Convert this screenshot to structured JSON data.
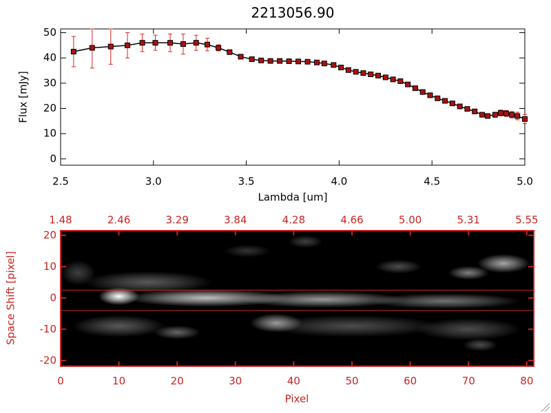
{
  "chart_data": [
    {
      "type": "errorbar-line",
      "title": "2213056.90",
      "xlabel": "Lambda [um]",
      "ylabel": "Flux [mJy]",
      "xlim": [
        2.5,
        5.0
      ],
      "xticks": [
        2.5,
        {
          "value": 3,
          "label": "3.0"
        },
        3.5,
        {
          "value": 4,
          "label": "4.0"
        },
        4.5,
        {
          "value": 5,
          "label": "5.0"
        }
      ],
      "ylim": [
        -2.5,
        51.5
      ],
      "yticks": [
        0,
        10,
        20,
        30,
        40,
        50
      ],
      "line_color": "#000000",
      "marker_color": "#aa1111",
      "error_color": "#dd2222",
      "x": [
        2.57,
        2.67,
        2.77,
        2.86,
        2.94,
        3.01,
        3.09,
        3.16,
        3.23,
        3.29,
        3.35,
        3.41,
        3.47,
        3.53,
        3.58,
        3.63,
        3.68,
        3.73,
        3.78,
        3.83,
        3.88,
        3.92,
        3.97,
        4.01,
        4.05,
        4.09,
        4.13,
        4.17,
        4.21,
        4.25,
        4.29,
        4.33,
        4.37,
        4.41,
        4.45,
        4.49,
        4.53,
        4.57,
        4.61,
        4.65,
        4.69,
        4.73,
        4.77,
        4.8,
        4.84,
        4.87,
        4.9,
        4.93,
        4.96,
        5.0
      ],
      "values": [
        42.5,
        44,
        44.5,
        45,
        46,
        46,
        46,
        45.5,
        46,
        45.3,
        44,
        42.3,
        40.5,
        39.5,
        39,
        38.8,
        38.8,
        38.7,
        38.6,
        38.5,
        38.2,
        37.8,
        37.2,
        36.2,
        35.2,
        34.5,
        34,
        33.5,
        33,
        32.3,
        31.5,
        30.8,
        29.5,
        28,
        26.5,
        25.2,
        24,
        23,
        22,
        20.8,
        19.8,
        18.8,
        17.5,
        17,
        17.5,
        18.2,
        18,
        17.5,
        17,
        15.8
      ],
      "errors": [
        6,
        8,
        7,
        5,
        3.5,
        3,
        3.5,
        4,
        3,
        2.5,
        1.2,
        0.8,
        0.6,
        0.5,
        0.5,
        0.5,
        0.5,
        0.5,
        0.5,
        0.5,
        0.5,
        0.5,
        0.5,
        0.5,
        0.5,
        0.5,
        0.5,
        0.5,
        0.5,
        0.5,
        0.5,
        0.5,
        0.5,
        0.5,
        0.5,
        0.5,
        0.5,
        0.5,
        0.5,
        0.6,
        0.6,
        0.7,
        0.8,
        0.8,
        1,
        1.2,
        1.2,
        1.3,
        1.5,
        1.8
      ]
    },
    {
      "type": "image",
      "xlabel": "Pixel",
      "ylabel": "Space Shift [pixel]",
      "axis_color": "#cc2222",
      "aperture_color": "#cc2222",
      "xlim": [
        0,
        81.2
      ],
      "xticks": [
        0,
        10,
        20,
        30,
        40,
        50,
        60,
        70,
        80
      ],
      "x2ticks": [
        {
          "value": 0,
          "label": "1.48"
        },
        {
          "value": 10,
          "label": "2.46"
        },
        {
          "value": 20,
          "label": "3.29"
        },
        {
          "value": 30,
          "label": "3.84"
        },
        {
          "value": 40,
          "label": "4.28"
        },
        {
          "value": 50,
          "label": "4.66"
        },
        {
          "value": 60,
          "label": "5.00"
        },
        {
          "value": 70,
          "label": "5.31"
        },
        {
          "value": 80,
          "label": "5.55"
        }
      ],
      "ylim": [
        -21.8,
        21.5
      ],
      "yticks": [
        -20,
        -10,
        0,
        10,
        20
      ],
      "aperture": [
        -4,
        2.5
      ],
      "emission": [
        {
          "x": 25,
          "y": 0,
          "sx": 14,
          "sy": 2.8,
          "peak": 0.75
        },
        {
          "x": 45,
          "y": -0.5,
          "sx": 14,
          "sy": 2.6,
          "peak": 0.6
        },
        {
          "x": 66,
          "y": -1,
          "sx": 13,
          "sy": 2.5,
          "peak": 0.45
        },
        {
          "x": 10,
          "y": 0.5,
          "sx": 3.5,
          "sy": 2.8,
          "peak": 1
        },
        {
          "x": 15,
          "y": 5,
          "sx": 11,
          "sy": 3.5,
          "peak": 0.35
        },
        {
          "x": 10,
          "y": -9,
          "sx": 8,
          "sy": 3.5,
          "peak": 0.35
        },
        {
          "x": 20,
          "y": -11,
          "sx": 4,
          "sy": 2.2,
          "peak": 0.4
        },
        {
          "x": 37,
          "y": -8,
          "sx": 4.5,
          "sy": 3,
          "peak": 0.6
        },
        {
          "x": 50,
          "y": -9,
          "sx": 15,
          "sy": 3.5,
          "peak": 0.3
        },
        {
          "x": 70,
          "y": -10,
          "sx": 9,
          "sy": 3.5,
          "peak": 0.3
        },
        {
          "x": 76,
          "y": 11,
          "sx": 4.5,
          "sy": 3,
          "peak": 0.65
        },
        {
          "x": 70,
          "y": 8,
          "sx": 3.5,
          "sy": 2.2,
          "peak": 0.5
        },
        {
          "x": 58,
          "y": 10,
          "sx": 4,
          "sy": 2.2,
          "peak": 0.3
        },
        {
          "x": 42,
          "y": 18,
          "sx": 3,
          "sy": 2,
          "peak": 0.25
        },
        {
          "x": 32,
          "y": 15,
          "sx": 4,
          "sy": 2,
          "peak": 0.2
        },
        {
          "x": 72,
          "y": -15,
          "sx": 3,
          "sy": 2,
          "peak": 0.3
        },
        {
          "x": 3,
          "y": 8,
          "sx": 3,
          "sy": 4,
          "peak": 0.25
        }
      ]
    }
  ]
}
